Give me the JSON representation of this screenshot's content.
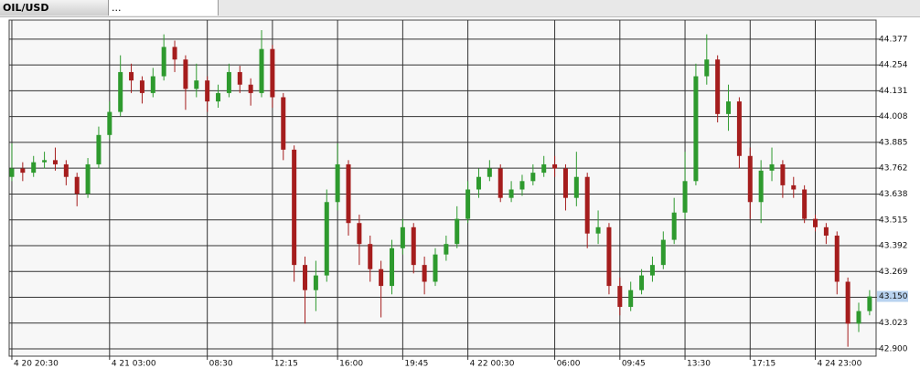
{
  "tabs": [
    "OIL/USD",
    "..."
  ],
  "chart_data": {
    "type": "candlestick",
    "up_color": "#2e9a2e",
    "down_color": "#a51d1d",
    "grid": true,
    "last_price": {
      "value": 43.15,
      "label": "43.150"
    },
    "ylim": [
      42.865,
      44.468
    ],
    "yticks": [
      44.377,
      44.254,
      44.131,
      44.008,
      43.885,
      43.762,
      43.638,
      43.515,
      43.392,
      43.269,
      43.146,
      43.023,
      {
        "value": 42.9,
        "label": "42.900"
      }
    ],
    "xlim": [
      -0.25,
      79.6
    ],
    "xticks": [
      {
        "value": 0,
        "label": "4 20 20:30"
      },
      {
        "value": 9,
        "label": "4 21 03:00"
      },
      {
        "value": 18,
        "label": "08:30"
      },
      {
        "value": 24,
        "label": "12:15"
      },
      {
        "value": 30,
        "label": "16:00"
      },
      {
        "value": 36,
        "label": "19:45"
      },
      {
        "value": 42,
        "label": "4 22 00:30"
      },
      {
        "value": 50,
        "label": "06:00"
      },
      {
        "value": 56,
        "label": "09:45"
      },
      {
        "value": 62,
        "label": "13:30"
      },
      {
        "value": 68,
        "label": "17:15"
      },
      {
        "value": 74,
        "label": "4 24 23:00"
      }
    ],
    "open": [
      43.72,
      43.76,
      43.74,
      43.79,
      43.8,
      43.78,
      43.72,
      43.64,
      43.78,
      43.92,
      44.03,
      44.22,
      44.18,
      44.12,
      44.2,
      44.34,
      44.28,
      44.14,
      44.18,
      44.08,
      44.12,
      44.22,
      44.16,
      44.12,
      44.33,
      44.1,
      43.85,
      43.3,
      43.18,
      43.25,
      43.6,
      43.78,
      43.5,
      43.4,
      43.28,
      43.2,
      43.38,
      43.48,
      43.3,
      43.22,
      43.35,
      43.4,
      43.52,
      43.66,
      43.72,
      43.76,
      43.62,
      43.66,
      43.7,
      43.74,
      43.78,
      43.76,
      43.62,
      43.72,
      43.45,
      43.48,
      43.2,
      43.1,
      43.18,
      43.25,
      43.3,
      43.42,
      43.55,
      43.7,
      44.2,
      44.28,
      44.02,
      44.08,
      43.82,
      43.6,
      43.75,
      43.78,
      43.68,
      43.66,
      43.52,
      43.48,
      43.44,
      43.22,
      43.02,
      43.08
    ],
    "high": [
      43.88,
      43.79,
      43.82,
      43.84,
      43.86,
      43.8,
      43.74,
      43.81,
      43.96,
      44.08,
      44.3,
      44.26,
      44.2,
      44.24,
      44.4,
      44.37,
      44.3,
      44.26,
      44.2,
      44.16,
      44.26,
      44.25,
      44.19,
      44.42,
      44.35,
      44.12,
      43.87,
      43.34,
      43.32,
      43.66,
      43.88,
      43.8,
      43.54,
      43.44,
      43.32,
      43.42,
      43.52,
      43.5,
      43.34,
      43.38,
      43.44,
      43.58,
      43.7,
      43.76,
      43.8,
      43.78,
      43.7,
      43.73,
      43.78,
      43.82,
      43.82,
      43.78,
      43.84,
      43.74,
      43.56,
      43.5,
      43.24,
      43.22,
      43.28,
      43.34,
      43.46,
      43.62,
      43.84,
      44.26,
      44.4,
      44.3,
      44.16,
      44.1,
      43.86,
      43.8,
      43.86,
      43.8,
      43.72,
      43.68,
      43.54,
      43.5,
      43.46,
      43.24,
      43.12,
      43.18
    ],
    "low": [
      43.7,
      43.7,
      43.72,
      43.76,
      43.75,
      43.68,
      43.58,
      43.62,
      43.76,
      43.9,
      44.01,
      44.12,
      44.07,
      44.1,
      44.18,
      44.22,
      44.04,
      44.1,
      44.03,
      44.05,
      44.1,
      44.12,
      44.06,
      44.1,
      44.05,
      43.8,
      43.22,
      43.02,
      43.08,
      43.22,
      43.56,
      43.44,
      43.3,
      43.22,
      43.05,
      43.16,
      43.35,
      43.26,
      43.16,
      43.2,
      43.32,
      43.38,
      43.5,
      43.62,
      43.7,
      43.6,
      43.6,
      43.63,
      43.68,
      43.72,
      43.72,
      43.56,
      43.58,
      43.38,
      43.4,
      43.16,
      43.06,
      43.08,
      43.16,
      43.22,
      43.28,
      43.4,
      43.52,
      43.68,
      44.16,
      43.98,
      43.94,
      43.76,
      43.52,
      43.5,
      43.7,
      43.62,
      43.62,
      43.5,
      43.46,
      43.4,
      43.16,
      42.91,
      42.98,
      43.06
    ],
    "close": [
      43.76,
      43.74,
      43.79,
      43.8,
      43.78,
      43.72,
      43.64,
      43.78,
      43.92,
      44.03,
      44.22,
      44.18,
      44.12,
      44.2,
      44.34,
      44.28,
      44.14,
      44.18,
      44.08,
      44.12,
      44.22,
      44.16,
      44.12,
      44.33,
      44.1,
      43.85,
      43.3,
      43.18,
      43.25,
      43.6,
      43.78,
      43.5,
      43.4,
      43.28,
      43.2,
      43.38,
      43.48,
      43.3,
      43.22,
      43.35,
      43.4,
      43.52,
      43.66,
      43.72,
      43.76,
      43.62,
      43.66,
      43.7,
      43.74,
      43.78,
      43.76,
      43.62,
      43.72,
      43.45,
      43.48,
      43.2,
      43.1,
      43.18,
      43.25,
      43.3,
      43.42,
      43.55,
      43.7,
      44.2,
      44.28,
      44.02,
      44.08,
      43.82,
      43.6,
      43.75,
      43.78,
      43.68,
      43.66,
      43.52,
      43.48,
      43.44,
      43.22,
      43.02,
      43.08,
      43.15
    ]
  }
}
